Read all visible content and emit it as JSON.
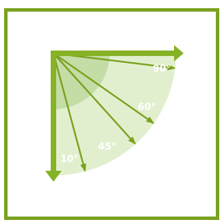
{
  "colors": {
    "frame": "#7aa21f",
    "sector_light": "#e2efcf",
    "sector_inner": "#c4dda6",
    "arrow": "#7aa21f",
    "axis": "#86b225",
    "label": "#ffffff"
  },
  "diagram": {
    "angles": [
      {
        "label": "90°",
        "angle_deg": 90
      },
      {
        "label": "60°",
        "angle_deg": 60
      },
      {
        "label": "45°",
        "angle_deg": 45
      },
      {
        "label": "10°",
        "angle_deg": 10
      }
    ]
  }
}
